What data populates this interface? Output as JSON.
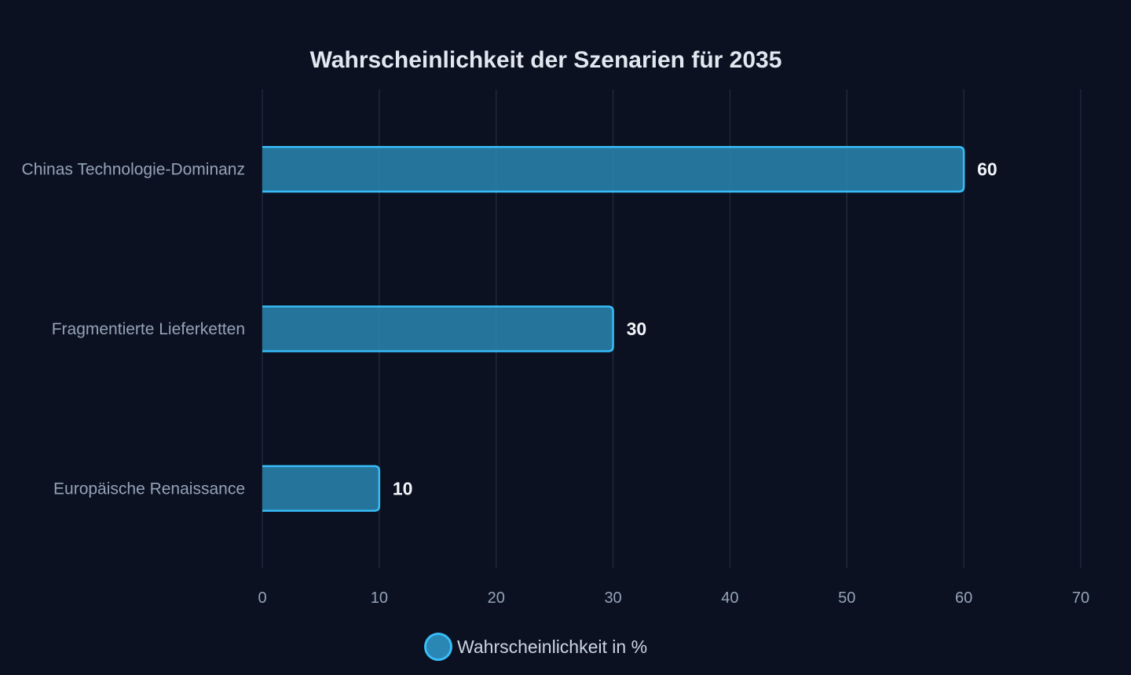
{
  "chart_data": {
    "type": "bar",
    "orientation": "horizontal",
    "title": "Wahrscheinlichkeit der Szenarien für 2035",
    "categories": [
      "Chinas Technologie-Dominanz",
      "Fragmentierte Lieferketten",
      "Europäische Renaissance"
    ],
    "series": [
      {
        "name": "Wahrscheinlichkeit in %",
        "values": [
          60,
          30,
          10
        ]
      }
    ],
    "xlim": [
      0,
      70
    ],
    "xticks": [
      0,
      10,
      20,
      30,
      40,
      50,
      60,
      70
    ],
    "grid": true,
    "legend_position": "bottom",
    "colors": {
      "bar_fill": "#2a86b3",
      "bar_stroke": "#38bdf8",
      "background": "#0b1120",
      "grid": "#1e293b"
    }
  }
}
